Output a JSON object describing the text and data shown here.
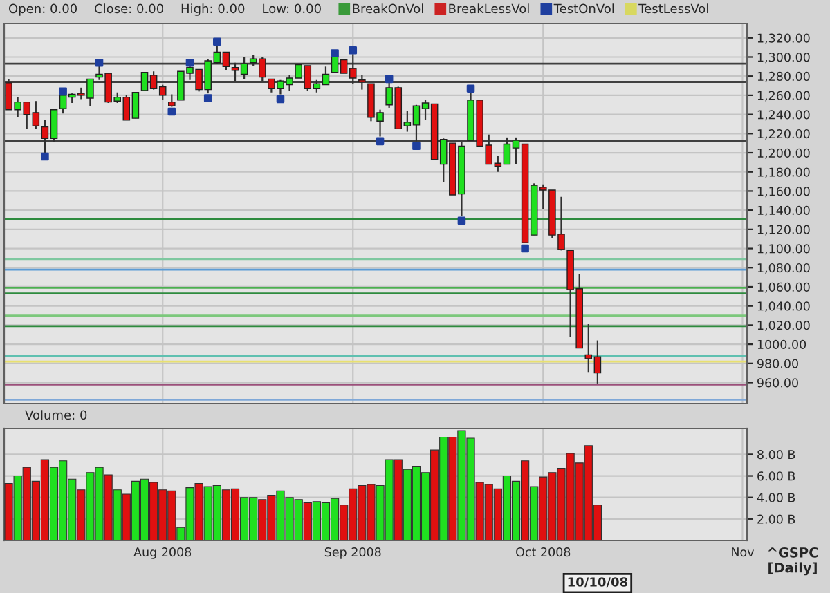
{
  "chart_data": [
    {
      "type": "candlestick",
      "tick_labels": "y",
      "grid": true,
      "legend": "top",
      "marker": "square",
      "categories": [
        null,
        null,
        null,
        null,
        null,
        null,
        null,
        null,
        null,
        null,
        null,
        null,
        null,
        null,
        null,
        null,
        null,
        null,
        null,
        null,
        null,
        null,
        null,
        null,
        null,
        null,
        null,
        null,
        null,
        null,
        null,
        null,
        null,
        null,
        null,
        null,
        null,
        null,
        null,
        null,
        null,
        null,
        null,
        null,
        null,
        null,
        null,
        null,
        null,
        null,
        null,
        null,
        null,
        null,
        null,
        null,
        null,
        null,
        null,
        null,
        null,
        null,
        null,
        null,
        null,
        null,
        null,
        null,
        null,
        null,
        null,
        null,
        null,
        null,
        null,
        null,
        null,
        null,
        null,
        null,
        null,
        null
      ],
      "ohlc": [
        [
          1273,
          1277,
          1245,
          1245
        ],
        [
          1245,
          1258,
          1237,
          1253
        ],
        [
          1253,
          1253,
          1225,
          1240
        ],
        [
          1242,
          1254,
          1225,
          1228
        ],
        [
          1227,
          1234,
          1200,
          1215
        ],
        [
          1215,
          1246,
          1211,
          1245
        ],
        [
          1246,
          1262,
          1241,
          1260
        ],
        [
          1258,
          1262,
          1252,
          1261
        ],
        [
          1262,
          1268,
          1256,
          1260
        ],
        [
          1257,
          1277,
          1249,
          1277
        ],
        [
          1279,
          1291,
          1276,
          1282
        ],
        [
          1283,
          1283,
          1252,
          1253
        ],
        [
          1254,
          1263,
          1252,
          1258
        ],
        [
          1258,
          1260,
          1234,
          1234
        ],
        [
          1236,
          1263,
          1236,
          1263
        ],
        [
          1265,
          1284,
          1265,
          1284
        ],
        [
          1281,
          1285,
          1266,
          1267
        ],
        [
          1269,
          1271,
          1255,
          1260
        ],
        [
          1253,
          1261,
          1248,
          1249
        ],
        [
          1255,
          1285,
          1255,
          1285
        ],
        [
          1283,
          1292,
          1276,
          1289
        ],
        [
          1287,
          1287,
          1264,
          1266
        ],
        [
          1266,
          1298,
          1262,
          1296
        ],
        [
          1294,
          1313,
          1293,
          1305
        ],
        [
          1305,
          1305,
          1286,
          1290
        ],
        [
          1289,
          1294,
          1275,
          1286
        ],
        [
          1282,
          1300,
          1277,
          1293
        ],
        [
          1294,
          1302,
          1291,
          1298
        ],
        [
          1298,
          1300,
          1275,
          1279
        ],
        [
          1277,
          1277,
          1263,
          1267
        ],
        [
          1267,
          1276,
          1261,
          1275
        ],
        [
          1271,
          1281,
          1265,
          1278
        ],
        [
          1278,
          1293,
          1278,
          1292
        ],
        [
          1291,
          1291,
          1265,
          1267
        ],
        [
          1267,
          1276,
          1263,
          1272
        ],
        [
          1271,
          1290,
          1271,
          1282
        ],
        [
          1284,
          1301,
          1284,
          1301
        ],
        [
          1297,
          1298,
          1283,
          1283
        ],
        [
          1288,
          1303,
          1272,
          1278
        ],
        [
          1276,
          1281,
          1266,
          1274
        ],
        [
          1272,
          1272,
          1233,
          1237
        ],
        [
          1233,
          1245,
          1217,
          1242
        ],
        [
          1250,
          1274,
          1247,
          1268
        ],
        [
          1268,
          1269,
          1225,
          1225
        ],
        [
          1228,
          1244,
          1222,
          1232
        ],
        [
          1229,
          1250,
          1212,
          1249
        ],
        [
          1246,
          1255,
          1234,
          1252
        ],
        [
          1251,
          1251,
          1193,
          1193
        ],
        [
          1188,
          1215,
          1169,
          1214
        ],
        [
          1210,
          1210,
          1156,
          1156
        ],
        [
          1157,
          1211,
          1134,
          1207
        ],
        [
          1213,
          1265,
          1213,
          1255
        ],
        [
          1255,
          1255,
          1206,
          1207
        ],
        [
          1208,
          1219,
          1188,
          1188
        ],
        [
          1189,
          1197,
          1180,
          1186
        ],
        [
          1188,
          1216,
          1188,
          1209
        ],
        [
          1205,
          1216,
          1188,
          1213
        ],
        [
          1209,
          1209,
          1106,
          1106
        ],
        [
          1114,
          1168,
          1114,
          1166
        ],
        [
          1164,
          1167,
          1141,
          1161
        ],
        [
          1161,
          1161,
          1111,
          1114
        ],
        [
          1115,
          1154,
          1098,
          1099
        ],
        [
          1098,
          1098,
          1008,
          1057
        ],
        [
          1058,
          1073,
          996,
          996
        ],
        [
          989,
          1021,
          971,
          985
        ],
        [
          987,
          1004,
          959,
          970
        ],
        null,
        null,
        null,
        null,
        null,
        null,
        null,
        null,
        null,
        null,
        null,
        null,
        null,
        null,
        null,
        null
      ],
      "colors": [
        "#e01010",
        "#20e020",
        "#e01010",
        "#e01010",
        "#e01010",
        "#20e020",
        "#20e020",
        "#20e020",
        "#e01010",
        "#20e020",
        "#20e020",
        "#e01010",
        "#20e020",
        "#e01010",
        "#20e020",
        "#20e020",
        "#e01010",
        "#e01010",
        "#e01010",
        "#20e020",
        "#20e020",
        "#e01010",
        "#20e020",
        "#20e020",
        "#e01010",
        "#e01010",
        "#20e020",
        "#20e020",
        "#e01010",
        "#e01010",
        "#20e020",
        "#20e020",
        "#20e020",
        "#e01010",
        "#20e020",
        "#20e020",
        "#20e020",
        "#e01010",
        "#e01010",
        "#e01010",
        "#e01010",
        "#20e020",
        "#20e020",
        "#e01010",
        "#20e020",
        "#20e020",
        "#20e020",
        "#e01010",
        "#20e020",
        "#e01010",
        "#20e020",
        "#20e020",
        "#e01010",
        "#e01010",
        "#e01010",
        "#20e020",
        "#20e020",
        "#e01010",
        "#20e020",
        "#e01010",
        "#e01010",
        "#e01010",
        "#e01010",
        "#e01010",
        "#e01010",
        "#e01010",
        null,
        null,
        null,
        null,
        null,
        null,
        null,
        null,
        null,
        null,
        null,
        null,
        null,
        null,
        null,
        null
      ],
      "ylim": [
        938,
        1335
      ],
      "yticks": [
        {
          "value": 960,
          "label": "960.00"
        },
        {
          "value": 980,
          "label": "980.00"
        },
        {
          "value": 1000,
          "label": "1000.00"
        },
        {
          "value": 1020,
          "label": "1,020.00"
        },
        {
          "value": 1040,
          "label": "1,040.00"
        },
        {
          "value": 1060,
          "label": "1,060.00"
        },
        {
          "value": 1080,
          "label": "1,080.00"
        },
        {
          "value": 1100,
          "label": "1,100.00"
        },
        {
          "value": 1120,
          "label": "1,120.00"
        },
        {
          "value": 1140,
          "label": "1,140.00"
        },
        {
          "value": 1160,
          "label": "1,160.00"
        },
        {
          "value": 1180,
          "label": "1,180.00"
        },
        {
          "value": 1200,
          "label": "1,200.00"
        },
        {
          "value": 1220,
          "label": "1,220.00"
        },
        {
          "value": 1240,
          "label": "1,240.00"
        },
        {
          "value": 1260,
          "label": "1,260.00"
        },
        {
          "value": 1280,
          "label": "1,280.00"
        },
        {
          "value": 1300,
          "label": "1,300.00"
        },
        {
          "value": 1320,
          "label": "1,320.00"
        }
      ],
      "series": [
        {
          "name": "BreakOnVol",
          "type": "scatter",
          "color": "#3a9a3a",
          "values": [
            null,
            null,
            null,
            null,
            null,
            null,
            null,
            null,
            null,
            null,
            null,
            null,
            null,
            null,
            null,
            null,
            null,
            null,
            null,
            null,
            null,
            null,
            null,
            null,
            null,
            null,
            null,
            null,
            null,
            null,
            null,
            null,
            null,
            null,
            null,
            null,
            null,
            null,
            null,
            null,
            null,
            null,
            null,
            null,
            null,
            null,
            null,
            null,
            null,
            null,
            null,
            null,
            null,
            null,
            null,
            null,
            null,
            null,
            null,
            null,
            null,
            null,
            null,
            null,
            null,
            null,
            null,
            null,
            null,
            null,
            null,
            null,
            null,
            null,
            null,
            null,
            null,
            null,
            null,
            null,
            null,
            null
          ]
        },
        {
          "name": "BreakLessVol",
          "type": "scatter",
          "color": "#cc2222",
          "values": [
            null,
            null,
            null,
            null,
            null,
            null,
            null,
            null,
            null,
            null,
            null,
            null,
            null,
            null,
            null,
            null,
            null,
            null,
            null,
            null,
            null,
            null,
            null,
            null,
            null,
            null,
            null,
            null,
            null,
            null,
            null,
            null,
            null,
            null,
            null,
            null,
            null,
            null,
            null,
            null,
            null,
            null,
            null,
            null,
            null,
            null,
            null,
            null,
            null,
            null,
            null,
            null,
            null,
            null,
            null,
            null,
            null,
            null,
            null,
            null,
            null,
            null,
            null,
            null,
            null,
            null,
            null,
            null,
            null,
            null,
            null,
            null,
            null,
            null,
            null,
            null,
            null,
            null,
            null,
            null,
            null,
            null
          ]
        },
        {
          "name": "TestOnVol",
          "type": "scatter",
          "color": "#1f3f9f",
          "values": [
            null,
            null,
            null,
            null,
            1196,
            null,
            1264,
            null,
            null,
            null,
            1294,
            null,
            null,
            null,
            null,
            null,
            null,
            null,
            1243,
            null,
            1294,
            null,
            1257,
            1316,
            null,
            null,
            null,
            null,
            null,
            null,
            1256,
            null,
            null,
            null,
            null,
            null,
            1304,
            null,
            1307,
            null,
            null,
            1212,
            1277,
            null,
            null,
            1207,
            null,
            null,
            null,
            null,
            1129,
            1267,
            null,
            null,
            null,
            null,
            null,
            1100,
            null,
            null,
            null,
            null,
            null,
            null,
            null,
            null,
            null,
            null,
            null,
            null,
            null,
            null,
            null,
            null,
            null,
            null,
            null,
            null,
            null,
            null,
            null,
            null
          ]
        },
        {
          "name": "TestLessVol",
          "type": "scatter",
          "color": "#d8d860",
          "values": [
            null,
            null,
            null,
            null,
            null,
            null,
            null,
            null,
            null,
            null,
            null,
            null,
            null,
            null,
            null,
            null,
            null,
            null,
            null,
            null,
            null,
            null,
            null,
            null,
            null,
            null,
            null,
            null,
            null,
            null,
            null,
            null,
            null,
            null,
            null,
            null,
            null,
            null,
            null,
            null,
            null,
            null,
            null,
            null,
            null,
            null,
            null,
            null,
            null,
            null,
            null,
            null,
            null,
            null,
            null,
            null,
            null,
            null,
            null,
            null,
            null,
            null,
            null,
            null,
            null,
            null,
            null,
            null,
            null,
            null,
            null,
            null,
            null,
            null,
            null,
            null,
            null,
            null,
            null,
            null,
            null,
            null
          ]
        }
      ],
      "ref_lines": [
        {
          "axis": "y",
          "value": 1293,
          "color": "#404040"
        },
        {
          "axis": "y",
          "value": 1274,
          "color": "#404040"
        },
        {
          "axis": "y",
          "value": 1212,
          "color": "#404040"
        },
        {
          "axis": "y",
          "value": 1131,
          "color": "#2e8b3e"
        },
        {
          "axis": "y",
          "value": 1089,
          "color": "#7fc8a0"
        },
        {
          "axis": "y",
          "value": 1078,
          "color": "#5b9bd5"
        },
        {
          "axis": "y",
          "value": 1059,
          "color": "#4caf50"
        },
        {
          "axis": "y",
          "value": 1053,
          "color": "#2e8b3e"
        },
        {
          "axis": "y",
          "value": 1030,
          "color": "#7cc87c"
        },
        {
          "axis": "y",
          "value": 1019,
          "color": "#2e8b3e"
        },
        {
          "axis": "y",
          "value": 988,
          "color": "#5fc0b0"
        },
        {
          "axis": "y",
          "value": 982,
          "color": "#e8e070"
        },
        {
          "axis": "y",
          "value": 958,
          "color": "#9b4f7a"
        },
        {
          "axis": "y",
          "value": 942,
          "color": "#7fa8d8"
        }
      ],
      "annotations": [
        "Open: 0.00",
        "Close: 0.00",
        "High: 0.00",
        "Low: 0.00"
      ]
    },
    {
      "type": "bar",
      "grid": true,
      "categories": [
        null,
        null,
        null,
        null,
        null,
        null,
        null,
        null,
        null,
        null,
        null,
        null,
        null,
        null,
        null,
        null,
        null,
        "Aug 2008",
        null,
        null,
        null,
        null,
        null,
        null,
        null,
        null,
        null,
        null,
        null,
        null,
        null,
        null,
        null,
        null,
        null,
        null,
        null,
        null,
        "Sep 2008",
        null,
        null,
        null,
        null,
        null,
        null,
        null,
        null,
        null,
        null,
        null,
        null,
        null,
        null,
        null,
        null,
        null,
        null,
        null,
        null,
        "Oct 2008",
        null,
        null,
        null,
        null,
        null,
        null,
        null,
        null,
        null,
        null,
        null,
        null,
        null,
        null,
        null,
        null,
        null,
        null,
        null,
        null,
        null,
        "Nov"
      ],
      "values": [
        5.3,
        6.0,
        6.8,
        5.5,
        7.5,
        6.8,
        7.4,
        5.7,
        4.7,
        6.3,
        6.8,
        6.1,
        4.7,
        4.3,
        5.5,
        5.7,
        5.4,
        4.7,
        4.6,
        1.2,
        4.9,
        5.3,
        5.0,
        5.1,
        4.7,
        4.8,
        4.0,
        4.0,
        3.8,
        4.2,
        4.6,
        4.0,
        3.8,
        3.5,
        3.6,
        3.5,
        3.9,
        3.3,
        4.8,
        5.1,
        5.2,
        5.1,
        7.5,
        7.5,
        6.6,
        6.9,
        6.3,
        8.4,
        9.6,
        9.6,
        10.2,
        9.5,
        5.4,
        5.2,
        4.8,
        6.0,
        5.5,
        7.4,
        5.0,
        5.9,
        6.3,
        6.7,
        8.1,
        7.2,
        8.8,
        3.3,
        null,
        null,
        null,
        null,
        null,
        null,
        null,
        null,
        null,
        null,
        null,
        null,
        null,
        null,
        null,
        null
      ],
      "colors": [
        "#e01010",
        "#20e020",
        "#e01010",
        "#e01010",
        "#e01010",
        "#20e020",
        "#20e020",
        "#20e020",
        "#e01010",
        "#20e020",
        "#20e020",
        "#e01010",
        "#20e020",
        "#e01010",
        "#20e020",
        "#20e020",
        "#e01010",
        "#e01010",
        "#e01010",
        "#20e020",
        "#20e020",
        "#e01010",
        "#20e020",
        "#20e020",
        "#e01010",
        "#e01010",
        "#20e020",
        "#20e020",
        "#e01010",
        "#e01010",
        "#20e020",
        "#20e020",
        "#20e020",
        "#e01010",
        "#20e020",
        "#20e020",
        "#20e020",
        "#e01010",
        "#e01010",
        "#e01010",
        "#e01010",
        "#20e020",
        "#20e020",
        "#e01010",
        "#20e020",
        "#20e020",
        "#20e020",
        "#e01010",
        "#20e020",
        "#e01010",
        "#20e020",
        "#20e020",
        "#e01010",
        "#e01010",
        "#e01010",
        "#20e020",
        "#20e020",
        "#e01010",
        "#20e020",
        "#e01010",
        "#e01010",
        "#e01010",
        "#e01010",
        "#e01010",
        "#e01010",
        "#e01010",
        null,
        null,
        null,
        null,
        null,
        null,
        null,
        null,
        null,
        null,
        null,
        null,
        null,
        null,
        null,
        null
      ],
      "ylim": [
        0,
        10.4
      ],
      "yticks": [
        {
          "value": 2,
          "label": "2.00 B"
        },
        {
          "value": 4,
          "label": "4.00 B"
        },
        {
          "value": 6,
          "label": "6.00 B"
        },
        {
          "value": 8,
          "label": "8.00 B"
        }
      ],
      "annotations": [
        "Volume: 0",
        "10/10/08",
        "^GSPC\n[Daily]"
      ]
    }
  ]
}
